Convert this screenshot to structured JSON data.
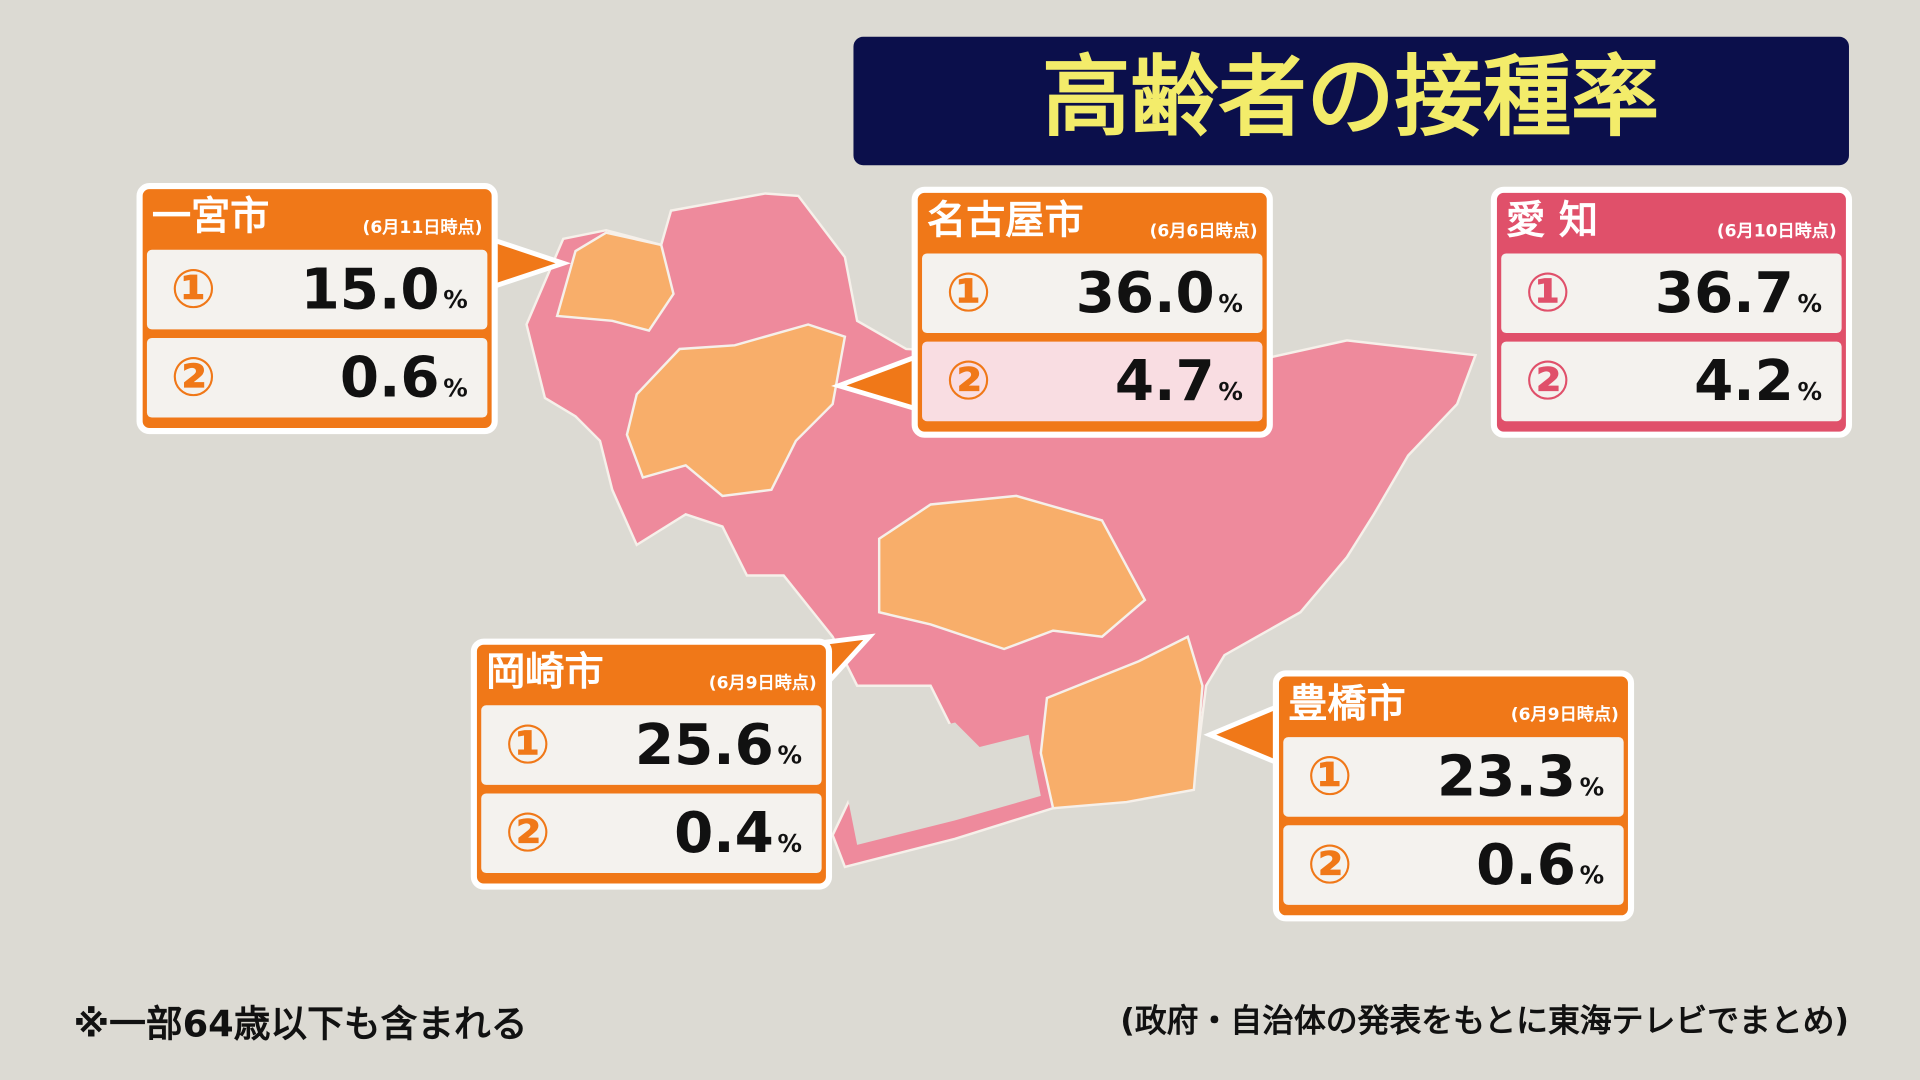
{
  "title": "高齢者の接種率",
  "boxes": [
    {
      "name": "一宮市",
      "date": "(6月11日時点)",
      "rows": [
        {
          "marker": "①",
          "value": "15.0",
          "unit": "%"
        },
        {
          "marker": "②",
          "value": "0.6",
          "unit": "%"
        }
      ]
    },
    {
      "name": "名古屋市",
      "date": "(6月6日時点)",
      "rows": [
        {
          "marker": "①",
          "value": "36.0",
          "unit": "%"
        },
        {
          "marker": "②",
          "value": "4.7",
          "unit": "%"
        }
      ]
    },
    {
      "name": "愛 知",
      "date": "(6月10日時点)",
      "rows": [
        {
          "marker": "①",
          "value": "36.7",
          "unit": "%"
        },
        {
          "marker": "②",
          "value": "4.2",
          "unit": "%"
        }
      ]
    },
    {
      "name": "岡崎市",
      "date": "(6月9日時点)",
      "rows": [
        {
          "marker": "①",
          "value": "25.6",
          "unit": "%"
        },
        {
          "marker": "②",
          "value": "0.4",
          "unit": "%"
        }
      ]
    },
    {
      "name": "豊橋市",
      "date": "(6月9日時点)",
      "rows": [
        {
          "marker": "①",
          "value": "23.3",
          "unit": "%"
        },
        {
          "marker": "②",
          "value": "0.6",
          "unit": "%"
        }
      ]
    }
  ],
  "footnote": "※一部64歳以下も含まれる",
  "source": "(政府・自治体の発表をもとに東海テレビでまとめ)"
}
